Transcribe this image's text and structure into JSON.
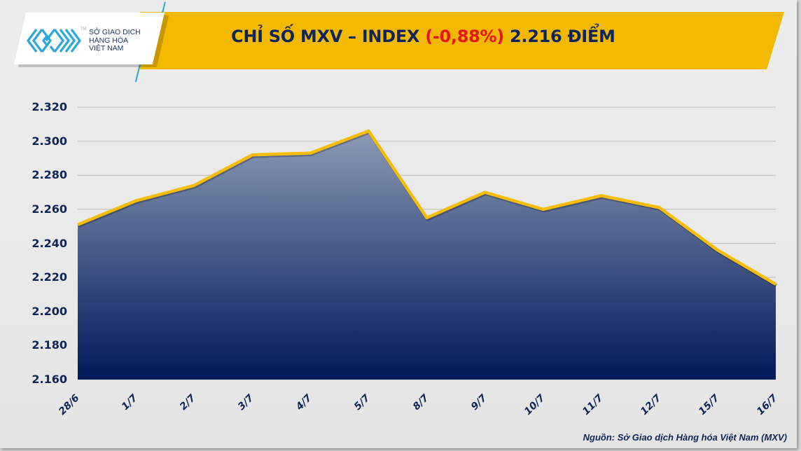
{
  "header": {
    "title_main": "CHỈ SỐ MXV – INDEX ",
    "title_change": "(-0,88%)",
    "title_value": " 2.216 ĐIỂM"
  },
  "logo": {
    "line1": "SỞ GIAO DỊCH",
    "line2": "HÀNG HÓA",
    "line3": "VIỆT NAM",
    "tm": "TM"
  },
  "colors": {
    "banner": "#f2b900",
    "title_text": "#0f2458",
    "negative": "#e8141b",
    "line": "#f7bd06",
    "area_top": "#8896b4",
    "area_bottom": "#001a5c",
    "logo_blue": "#2aa7df"
  },
  "y_axis": {
    "ticks": [
      "2.320",
      "2.300",
      "2.280",
      "2.260",
      "2.240",
      "2.220",
      "2.200",
      "2.180",
      "2.160"
    ]
  },
  "x_axis": {
    "ticks": [
      "28/6",
      "1/7",
      "2/7",
      "3/7",
      "4/7",
      "5/7",
      "8/7",
      "9/7",
      "10/7",
      "11/7",
      "12/7",
      "15/7",
      "16/7"
    ]
  },
  "footer": {
    "source": "Nguồn: Sở Giao dịch Hàng hóa Việt Nam (MXV)"
  },
  "chart_data": {
    "type": "area",
    "title": "CHỈ SỐ MXV – INDEX (-0,88%) 2.216 ĐIỂM",
    "xlabel": "",
    "ylabel": "",
    "categories": [
      "28/6",
      "1/7",
      "2/7",
      "3/7",
      "4/7",
      "5/7",
      "8/7",
      "9/7",
      "10/7",
      "11/7",
      "12/7",
      "15/7",
      "16/7"
    ],
    "series": [
      {
        "name": "MXV-Index",
        "values": [
          2251,
          2265,
          2274,
          2292,
          2293,
          2306,
          2255,
          2270,
          2260,
          2268,
          2261,
          2236,
          2216
        ]
      }
    ],
    "ylim": [
      2160,
      2320
    ],
    "ytick_step": 20,
    "grid": true,
    "legend": "none",
    "source": "Nguồn: Sở Giao dịch Hàng hóa Việt Nam (MXV)"
  }
}
